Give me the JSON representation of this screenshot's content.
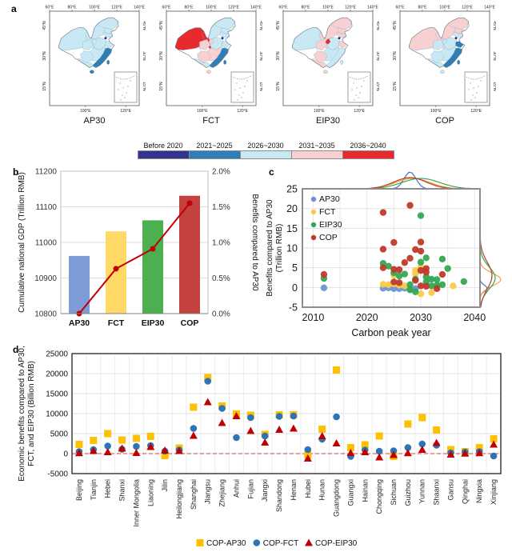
{
  "panels": {
    "a": {
      "label": "a",
      "maps": [
        {
          "title": "AP30",
          "fills": {
            "xinjiang": "lightblue",
            "innermongolia": "lightblue",
            "heilongjiang": "lightblue",
            "jilin": "lightblue",
            "liaoning": "lightblue",
            "gansu": "lightblue",
            "qinghai": "lightblue",
            "tibet": "white",
            "northcenter": "lightblue",
            "ningxia": "lightblue",
            "shandong": "lightblue",
            "center": "lightblue",
            "southwest": "lightblue",
            "south": "lightblue",
            "eastcoast": "blue",
            "hainan": "blue",
            "taiwan": "blue",
            "beijing": "navy"
          }
        },
        {
          "title": "FCT",
          "fills": {
            "xinjiang": "red",
            "innermongolia": "lightblue",
            "heilongjiang": "lightblue",
            "jilin": "lightblue",
            "liaoning": "lightblue",
            "gansu": "red",
            "qinghai": "pink",
            "tibet": "white",
            "northcenter": "lightblue",
            "ningxia": "pink",
            "shandong": "lightblue",
            "center": "pink",
            "southwest": "pink",
            "south": "lightblue",
            "eastcoast": "blue",
            "hainan": "pink",
            "taiwan": "blue",
            "beijing": "navy"
          }
        },
        {
          "title": "EIP30",
          "fills": {
            "xinjiang": "lightblue",
            "innermongolia": "pink",
            "heilongjiang": "pink",
            "jilin": "pink",
            "liaoning": "pink",
            "gansu": "pink",
            "qinghai": "pink",
            "tibet": "white",
            "northcenter": "lightblue",
            "ningxia": "red",
            "shandong": "pink",
            "center": "lightblue",
            "southwest": "pink",
            "south": "pink",
            "eastcoast": "lightblue",
            "hainan": "pink",
            "taiwan": "lightblue",
            "beijing": "navy"
          }
        },
        {
          "title": "COP",
          "fills": {
            "xinjiang": "pink",
            "innermongolia": "pink",
            "heilongjiang": "pink",
            "jilin": "pink",
            "liaoning": "lightblue",
            "gansu": "pink",
            "qinghai": "lightblue",
            "tibet": "white",
            "northcenter": "lightblue",
            "ningxia": "lightblue",
            "shandong": "blue",
            "center": "lightblue",
            "southwest": "lightblue",
            "south": "lightblue",
            "eastcoast": "blue",
            "hainan": "lightblue",
            "taiwan": "blue",
            "beijing": "navy"
          }
        }
      ],
      "axis_ticks": {
        "top": [
          "60°E",
          "80°E",
          "100°E",
          "120°E",
          "140°E"
        ],
        "side": [
          "45°N",
          "30°N",
          "15°N"
        ],
        "bottom": [
          "100°E",
          "120°E"
        ]
      },
      "legend": [
        {
          "label": "Before 2020",
          "color": "#32328F"
        },
        {
          "label": "2021~2025",
          "color": "#2E7FB5"
        },
        {
          "label": "2026~2030",
          "color": "#C8E9F4"
        },
        {
          "label": "2031~2035",
          "color": "#F8D0D2"
        },
        {
          "label": "2036~2040",
          "color": "#E8292D"
        }
      ],
      "palette": {
        "navy": "#2A2A85",
        "blue": "#2E7FB5",
        "lightblue": "#C8E9F4",
        "pink": "#F8D0D2",
        "red": "#E8292D",
        "white": "#FFFFFF"
      }
    },
    "b": {
      "label": "b"
    },
    "c": {
      "label": "c"
    },
    "d": {
      "label": "d"
    }
  },
  "chart_data": [
    {
      "id": "b",
      "type": "bar",
      "categories": [
        "AP30",
        "FCT",
        "EIP30",
        "COP"
      ],
      "bar_values": [
        10962,
        11031,
        11062,
        11131
      ],
      "bar_colors": [
        "#7E9CD8",
        "#FFD966",
        "#4CAF50",
        "#C3423E"
      ],
      "line_series": {
        "name": "Benefits compared to AP30",
        "values": [
          0.0,
          0.63,
          0.91,
          1.55
        ],
        "color": "#C00000"
      },
      "ylabel_left": "Cumulative national GDP (Trillion RMB)",
      "ylabel_right": "Benefits compared to AP30",
      "yticks_left": [
        10800,
        10900,
        11000,
        11100,
        11200
      ],
      "yticks_right": [
        "0.0%",
        "0.5%",
        "1.0%",
        "1.5%",
        "2.0%"
      ],
      "ylim_left": [
        10800,
        11200
      ],
      "ylim_right_pct": [
        0,
        2
      ],
      "grid": true
    },
    {
      "id": "c",
      "type": "scatter",
      "xlabel": "Carbon peak year",
      "ylabel_line1": "Benefits compared to AP30",
      "ylabel_line2": "(Trillion RMB)",
      "xticks": [
        2010,
        2020,
        2030,
        2040
      ],
      "yticks": [
        -5,
        0,
        5,
        10,
        15,
        20,
        25
      ],
      "xlim": [
        2008,
        2041
      ],
      "ylim": [
        -5,
        25
      ],
      "grid": true,
      "legend_position": "top-left",
      "series": [
        {
          "name": "AP30",
          "color": "#6E93D1",
          "points": [
            [
              2012,
              -0.1
            ],
            [
              2023,
              -0.2
            ],
            [
              2024,
              -0.1
            ],
            [
              2025,
              -0.3
            ],
            [
              2026,
              -0.3
            ],
            [
              2027,
              -0.2
            ],
            [
              2028,
              -0.4
            ],
            [
              2029,
              -0.3
            ]
          ]
        },
        {
          "name": "FCT",
          "color": "#F9CB4A",
          "points": [
            [
              2023,
              0.8
            ],
            [
              2024,
              0.7
            ],
            [
              2025,
              3.1
            ],
            [
              2025,
              0.9
            ],
            [
              2026,
              0.6
            ],
            [
              2027,
              0.4
            ],
            [
              2029,
              4.3
            ],
            [
              2029,
              3.4
            ],
            [
              2030,
              5.2
            ],
            [
              2030,
              -1.6
            ],
            [
              2031,
              2.6
            ],
            [
              2032,
              -1.3
            ],
            [
              2033,
              0.4
            ],
            [
              2036,
              0.4
            ]
          ]
        },
        {
          "name": "EIP30",
          "color": "#33A852",
          "points": [
            [
              2012,
              2.3
            ],
            [
              2023,
              6.1
            ],
            [
              2024,
              5.4
            ],
            [
              2025,
              3.7
            ],
            [
              2026,
              2.9
            ],
            [
              2027,
              3.4
            ],
            [
              2028,
              0.7
            ],
            [
              2028,
              -0.6
            ],
            [
              2029,
              2.1
            ],
            [
              2029,
              -1.1
            ],
            [
              2030,
              18.2
            ],
            [
              2030,
              6.4
            ],
            [
              2031,
              7.5
            ],
            [
              2031,
              2.7
            ],
            [
              2031,
              1.4
            ],
            [
              2032,
              2.1
            ],
            [
              2032,
              0.4
            ],
            [
              2033,
              2.0
            ],
            [
              2033,
              0.6
            ],
            [
              2034,
              7.2
            ],
            [
              2034,
              0.7
            ],
            [
              2035,
              4.8
            ],
            [
              2038,
              1.5
            ]
          ]
        },
        {
          "name": "COP",
          "color": "#C0392B",
          "points": [
            [
              2012,
              3.3
            ],
            [
              2023,
              19.0
            ],
            [
              2023,
              9.7
            ],
            [
              2023,
              5.0
            ],
            [
              2025,
              11.4
            ],
            [
              2025,
              4.6
            ],
            [
              2025,
              1.4
            ],
            [
              2026,
              4.5
            ],
            [
              2026,
              1.2
            ],
            [
              2027,
              6.3
            ],
            [
              2028,
              20.8
            ],
            [
              2028,
              7.4
            ],
            [
              2029,
              9.6
            ],
            [
              2029,
              1.8
            ],
            [
              2030,
              11.5
            ],
            [
              2030,
              9.2
            ],
            [
              2030,
              4.3
            ],
            [
              2030,
              0.4
            ],
            [
              2031,
              4.8
            ],
            [
              2031,
              3.9
            ],
            [
              2031,
              0.3
            ],
            [
              2033,
              -0.3
            ],
            [
              2034,
              3.3
            ]
          ]
        }
      ],
      "marginal_top": [
        {
          "mu": 2028,
          "s": 1.1,
          "h": 21,
          "color": "#4472C4"
        },
        {
          "mu": 2028.5,
          "s": 3.2,
          "h": 13,
          "color": "#F2A33A"
        },
        {
          "mu": 2030,
          "s": 3.5,
          "h": 13,
          "color": "#33A852"
        },
        {
          "mu": 2028,
          "s": 3.0,
          "h": 14,
          "color": "#C0392B"
        }
      ],
      "marginal_right": [
        {
          "mu": -0.2,
          "s": 0.8,
          "h": 9,
          "color": "#4472C4"
        },
        {
          "mu": 2.0,
          "s": 1.6,
          "h": 26,
          "color": "#F2A33A"
        },
        {
          "mu": 2.4,
          "s": 2.8,
          "h": 19,
          "color": "#33A852"
        },
        {
          "mu": 3.0,
          "s": 3.4,
          "h": 15,
          "color": "#C0392B"
        }
      ]
    },
    {
      "id": "d",
      "type": "scatter",
      "categories": [
        "Beijing",
        "Tianjin",
        "Hebei",
        "Shanxi",
        "Inner Mongolia",
        "Liaoning",
        "Jilin",
        "Heilongjiang",
        "Shanghai",
        "Jiangsu",
        "Zhejiang",
        "Anhui",
        "Fujian",
        "Jiangxi",
        "Shandong",
        "Henan",
        "Hubei",
        "Hunan",
        "Guangdong",
        "Guangxi",
        "Hainan",
        "Chongqing",
        "Sichuan",
        "Guizhou",
        "Yunnan",
        "Shaanxi",
        "Gansu",
        "Qinghai",
        "Ningxia",
        "Xinjiang"
      ],
      "ylabel_line1": "Economic benefits compared to AP30,",
      "ylabel_line2": "FCT, and EIP30 (Billion RMB)",
      "yticks": [
        -5000,
        0,
        5000,
        10000,
        15000,
        20000,
        25000
      ],
      "ylim": [
        -5000,
        25000
      ],
      "zero_line_color": "#E06666",
      "grid": true,
      "series": [
        {
          "name": "COP-AP30",
          "marker": "square",
          "color": "#FFC000",
          "values": [
            2300,
            3300,
            5000,
            3400,
            3800,
            4300,
            -500,
            1400,
            11600,
            19000,
            11900,
            9900,
            9600,
            4800,
            9700,
            9700,
            -400,
            6100,
            20900,
            1500,
            2200,
            4400,
            -700,
            7400,
            9000,
            5900,
            1000,
            500,
            1500,
            3700
          ]
        },
        {
          "name": "COP-FCT",
          "marker": "circle",
          "color": "#2E75B6",
          "values": [
            500,
            1000,
            1900,
            1100,
            1800,
            2000,
            600,
            900,
            6300,
            18100,
            11300,
            4000,
            9000,
            4400,
            9300,
            9400,
            1000,
            3600,
            9200,
            -700,
            900,
            600,
            700,
            1500,
            2400,
            2100,
            200,
            400,
            500,
            -600
          ]
        },
        {
          "name": "COP-EIP30",
          "marker": "triangle",
          "color": "#C00000",
          "values": [
            150,
            700,
            400,
            1300,
            200,
            1700,
            800,
            700,
            4500,
            12900,
            7700,
            9400,
            5700,
            2800,
            6000,
            6300,
            -1200,
            4400,
            2600,
            200,
            400,
            -900,
            -300,
            150,
            1000,
            2700,
            -200,
            50,
            150,
            2300
          ]
        }
      ]
    }
  ]
}
